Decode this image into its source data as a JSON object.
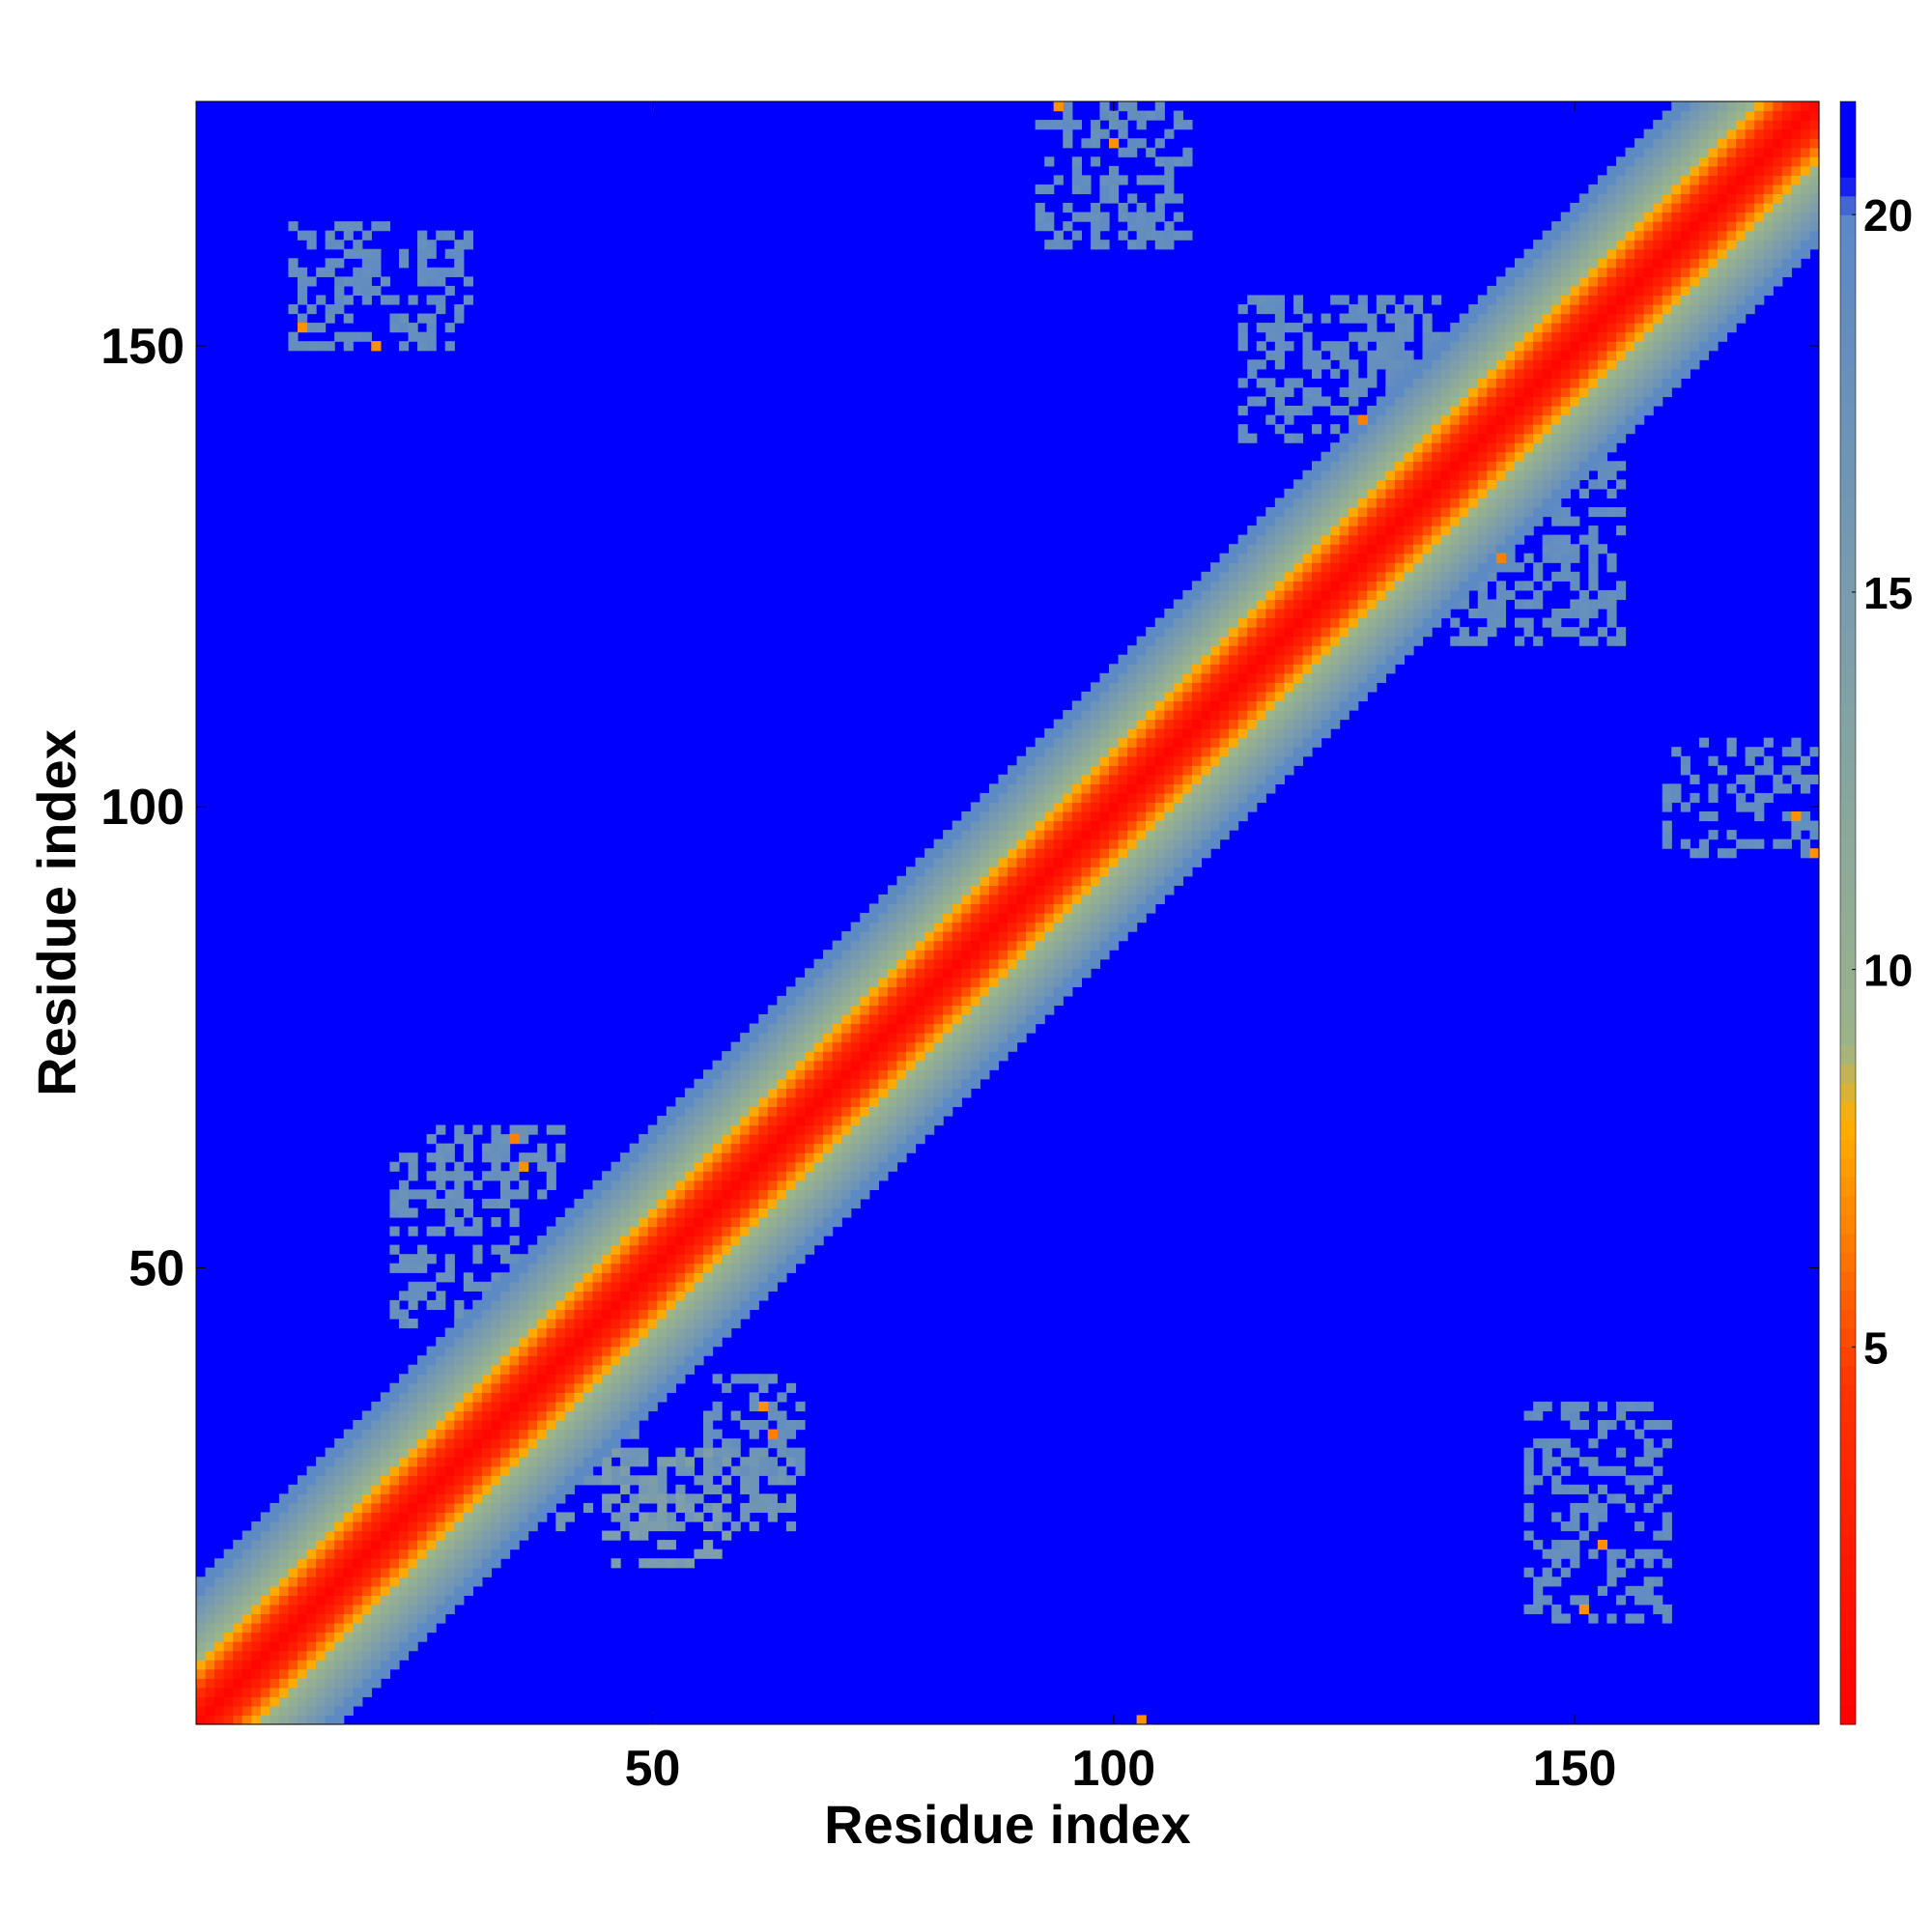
{
  "chart_data": {
    "type": "heatmap",
    "title": "",
    "xlabel": "Residue index",
    "ylabel": "Residue index",
    "x_range": [
      1,
      176
    ],
    "y_range": [
      1,
      176
    ],
    "x_ticks": [
      50,
      100,
      150
    ],
    "y_ticks": [
      50,
      100,
      150
    ],
    "x_tick_labels": [
      "50",
      "100",
      "150"
    ],
    "y_tick_labels": [
      "50",
      "100",
      "150"
    ],
    "colorbar": {
      "range": [
        0,
        21.5
      ],
      "ticks": [
        5,
        10,
        15,
        20
      ],
      "tick_labels": [
        "5",
        "10",
        "15",
        "20"
      ],
      "stops": [
        {
          "value": 0,
          "color": "#ff0000"
        },
        {
          "value": 4.5,
          "color": "#ff3300"
        },
        {
          "value": 6.5,
          "color": "#ff8000"
        },
        {
          "value": 8,
          "color": "#ffb000"
        },
        {
          "value": 9,
          "color": "#9bb48a"
        },
        {
          "value": 14,
          "color": "#7f9fa8"
        },
        {
          "value": 20,
          "color": "#5b88c6"
        },
        {
          "value": 20.5,
          "color": "#0000ff"
        }
      ]
    },
    "background_color": "#0000ff",
    "diagonal_band": {
      "half_width": 15
    },
    "offdiag_contacts": [
      {
        "x": [
          22,
          48
        ],
        "y": [
          30,
          38
        ],
        "value": 17.5
      },
      {
        "x": [
          37,
          48
        ],
        "y": [
          38,
          50
        ],
        "value": 15.5
      },
      {
        "x": [
          40,
          65
        ],
        "y": [
          22,
          30
        ],
        "value": 16.5
      },
      {
        "x": [
          22,
          35
        ],
        "y": [
          44,
          62
        ],
        "value": 17.8
      },
      {
        "x": [
          26,
          40
        ],
        "y": [
          57,
          65
        ],
        "value": 17.8
      },
      {
        "x": [
          45,
          58
        ],
        "y": [
          18,
          30
        ],
        "value": 14.5
      },
      {
        "x": [
          56,
          66
        ],
        "y": [
          28,
          38
        ],
        "value": 18.0
      },
      {
        "x": [
          11,
          30
        ],
        "y": [
          150,
          163
        ],
        "value": 18.5
      },
      {
        "x": [
          92,
          108
        ],
        "y": [
          161,
          176
        ],
        "value": 18.5
      },
      {
        "x": [
          114,
          135
        ],
        "y": [
          140,
          155
        ],
        "value": 18.5
      },
      {
        "x": [
          136,
          155
        ],
        "y": [
          118,
          140
        ],
        "value": 18.5
      },
      {
        "x": [
          160,
          176
        ],
        "y": [
          95,
          107
        ],
        "value": 18.5
      },
      {
        "x": [
          145,
          160
        ],
        "y": [
          12,
          35
        ],
        "value": 18.5
      }
    ],
    "close_contacts": [
      {
        "x": 35,
        "y": 64,
        "value": 6.5
      },
      {
        "x": 36,
        "y": 61,
        "value": 7.0
      },
      {
        "x": 62,
        "y": 35,
        "value": 7.0
      },
      {
        "x": 63,
        "y": 32,
        "value": 6.5
      },
      {
        "x": 12,
        "y": 152,
        "value": 7.0
      },
      {
        "x": 20,
        "y": 150,
        "value": 7.0
      },
      {
        "x": 94,
        "y": 176,
        "value": 7.0
      },
      {
        "x": 100,
        "y": 172,
        "value": 7.0
      },
      {
        "x": 127,
        "y": 142,
        "value": 6.5
      },
      {
        "x": 142,
        "y": 127,
        "value": 6.5
      },
      {
        "x": 174,
        "y": 99,
        "value": 7.0
      },
      {
        "x": 176,
        "y": 95,
        "value": 7.0
      },
      {
        "x": 151,
        "y": 13,
        "value": 7.0
      },
      {
        "x": 153,
        "y": 20,
        "value": 7.0
      },
      {
        "x": 103,
        "y": 1,
        "value": 7.0
      }
    ]
  }
}
